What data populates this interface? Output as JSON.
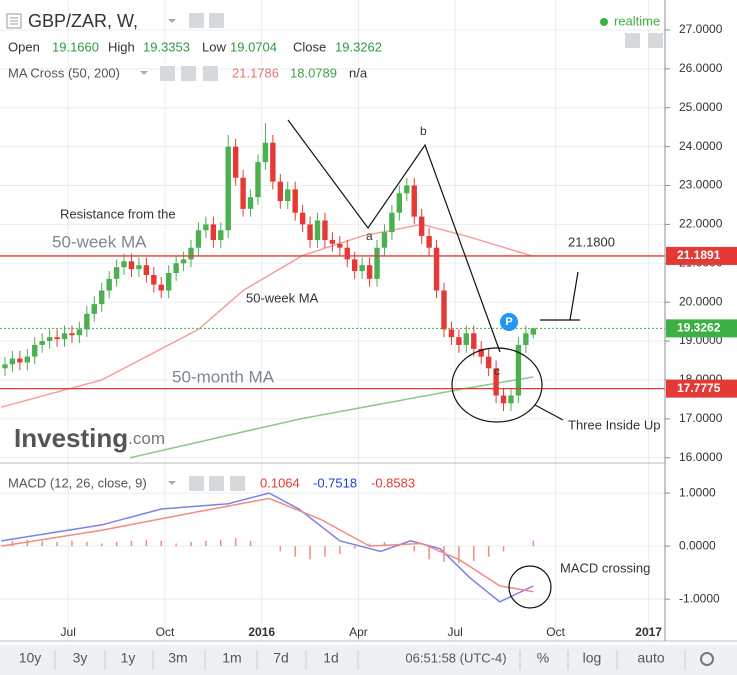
{
  "chart_data": [
    {
      "type": "candlestick",
      "symbol": "GBP/ZAR, W,",
      "realtime": "realtime",
      "ohlc_legend": [
        {
          "name": "Open",
          "value": {
            "value": 19.166,
            "label": "19.1660"
          }
        },
        {
          "name": "High",
          "value": 19.3353
        },
        {
          "name": "Low",
          "value": 19.0704
        },
        {
          "name": "Close",
          "value": 19.3262
        }
      ],
      "ma_cross": {
        "name": "MA Cross (50, 200)",
        "values": [
          21.1786,
          18.0789
        ],
        "extra": "n/a"
      },
      "up_color": "#4caf50",
      "down_color": "#e53935",
      "xlim": [
        -0.67,
        88.7
      ],
      "ylim": [
        15.89,
        27.77
      ],
      "yticks": [
        {
          "value": 16,
          "label": "16.0000"
        },
        {
          "value": 17,
          "label": "17.0000"
        },
        {
          "value": 18,
          "label": "18.0000"
        },
        {
          "value": 19,
          "label": "19.0000"
        },
        {
          "value": 20,
          "label": "20.0000"
        },
        {
          "value": 21,
          "label": "21.0000"
        },
        {
          "value": 22,
          "label": "22.0000"
        },
        {
          "value": 23,
          "label": "23.0000"
        },
        {
          "value": 24,
          "label": "24.0000"
        },
        {
          "value": 25,
          "label": "25.0000"
        },
        {
          "value": 26,
          "label": "26.0000"
        },
        {
          "value": 27,
          "label": "27.0000"
        }
      ],
      "grid": true,
      "ohlc": [
        [
          18.3,
          18.6,
          18.1,
          18.4
        ],
        [
          18.4,
          18.75,
          18.2,
          18.55
        ],
        [
          18.55,
          18.75,
          18.25,
          18.45
        ],
        [
          18.45,
          18.8,
          18.25,
          18.6
        ],
        [
          18.6,
          19.1,
          18.4,
          18.9
        ],
        [
          18.9,
          19.2,
          18.7,
          19.0
        ],
        [
          19.0,
          19.3,
          18.8,
          19.1
        ],
        [
          19.1,
          19.3,
          18.85,
          19.05
        ],
        [
          19.05,
          19.4,
          18.85,
          19.2
        ],
        [
          19.2,
          19.4,
          18.95,
          19.15
        ],
        [
          19.15,
          19.5,
          18.95,
          19.3
        ],
        [
          19.3,
          19.9,
          19.1,
          19.7
        ],
        [
          19.7,
          20.15,
          19.5,
          19.95
        ],
        [
          19.95,
          20.5,
          19.75,
          20.3
        ],
        [
          20.3,
          20.8,
          20.1,
          20.6
        ],
        [
          20.6,
          21.1,
          20.4,
          20.9
        ],
        [
          20.9,
          21.25,
          20.7,
          21.05
        ],
        [
          21.05,
          21.25,
          20.65,
          20.85
        ],
        [
          20.85,
          21.15,
          20.65,
          20.95
        ],
        [
          20.95,
          21.15,
          20.5,
          20.7
        ],
        [
          20.7,
          20.9,
          20.25,
          20.45
        ],
        [
          20.45,
          20.65,
          20.1,
          20.3
        ],
        [
          20.3,
          20.95,
          20.1,
          20.75
        ],
        [
          20.75,
          21.2,
          20.55,
          21.0
        ],
        [
          21.0,
          21.3,
          20.8,
          21.1
        ],
        [
          21.1,
          21.6,
          20.9,
          21.4
        ],
        [
          21.4,
          22.05,
          21.2,
          21.85
        ],
        [
          21.85,
          22.2,
          21.65,
          22.0
        ],
        [
          22.0,
          22.2,
          21.4,
          21.6
        ],
        [
          21.6,
          22.05,
          21.4,
          21.85
        ],
        [
          21.85,
          24.3,
          21.65,
          24.0
        ],
        [
          24.0,
          24.2,
          23.0,
          23.2
        ],
        [
          23.2,
          23.4,
          22.2,
          22.4
        ],
        [
          22.4,
          22.9,
          22.2,
          22.7
        ],
        [
          22.7,
          23.8,
          22.5,
          23.6
        ],
        [
          23.6,
          24.6,
          23.4,
          24.1
        ],
        [
          24.1,
          24.3,
          22.9,
          23.1
        ],
        [
          23.1,
          23.3,
          22.4,
          22.6
        ],
        [
          22.6,
          23.1,
          22.4,
          22.9
        ],
        [
          22.9,
          23.1,
          22.1,
          22.3
        ],
        [
          22.3,
          22.5,
          21.8,
          22.0
        ],
        [
          22.0,
          22.2,
          21.4,
          21.6
        ],
        [
          21.6,
          22.3,
          21.4,
          22.1
        ],
        [
          22.1,
          22.3,
          21.4,
          21.6
        ],
        [
          21.6,
          21.8,
          21.3,
          21.5
        ],
        [
          21.5,
          21.7,
          21.2,
          21.4
        ],
        [
          21.4,
          21.6,
          20.9,
          21.1
        ],
        [
          21.1,
          21.3,
          20.6,
          20.8
        ],
        [
          20.8,
          21.15,
          20.6,
          20.95
        ],
        [
          20.95,
          21.15,
          20.4,
          20.6
        ],
        [
          20.6,
          21.6,
          20.4,
          21.4
        ],
        [
          21.4,
          22.0,
          21.2,
          21.8
        ],
        [
          21.8,
          22.5,
          21.6,
          22.3
        ],
        [
          22.3,
          23.0,
          22.1,
          22.8
        ],
        [
          22.8,
          23.2,
          22.6,
          23.0
        ],
        [
          23.0,
          23.2,
          22.0,
          22.2
        ],
        [
          22.2,
          22.4,
          21.5,
          21.7
        ],
        [
          21.7,
          21.9,
          21.2,
          21.4
        ],
        [
          21.4,
          21.6,
          20.1,
          20.3
        ],
        [
          20.3,
          20.5,
          19.1,
          19.3
        ],
        [
          19.3,
          19.5,
          18.9,
          19.1
        ],
        [
          19.1,
          19.3,
          18.7,
          18.9
        ],
        [
          18.9,
          19.4,
          18.7,
          19.2
        ],
        [
          19.2,
          19.4,
          18.6,
          18.8
        ],
        [
          18.8,
          19.0,
          18.4,
          18.6
        ],
        [
          18.6,
          18.8,
          18.1,
          18.3
        ],
        [
          18.3,
          18.5,
          17.4,
          17.6
        ],
        [
          17.6,
          17.8,
          17.2,
          17.4
        ],
        [
          17.4,
          17.8,
          17.2,
          17.6
        ],
        [
          17.6,
          19.1,
          17.4,
          18.9
        ],
        [
          18.9,
          19.4,
          18.7,
          19.2
        ],
        [
          19.166,
          19.3353,
          19.0704,
          19.3262
        ]
      ],
      "series": [
        {
          "color": "#f4a09a",
          "x": [
            -0.5,
            13,
            26,
            32,
            40,
            48,
            56,
            62,
            71
          ],
          "values": [
            17.3,
            18.0,
            19.3,
            20.3,
            21.2,
            21.7,
            22.0,
            21.7,
            21.1786
          ]
        },
        {
          "color": "#8cc98a",
          "x": [
            16.8,
            39.7,
            61,
            71
          ],
          "values": [
            16.0,
            17.0,
            17.75,
            18.0789
          ]
        }
      ],
      "price_lines": [
        {
          "value": 21.1891,
          "color": "#e53935",
          "style": "solid"
        },
        {
          "value": 17.7775,
          "color": "#e53935",
          "style": "solid"
        },
        {
          "value": 19.3262,
          "color": "#3cb043",
          "style": "dotted"
        }
      ],
      "annotations": {
        "resistance": "Resistance from the",
        "resistance_ma": "50-week MA",
        "ma50w": "50-week MA",
        "ma50m": "50-month MA",
        "level": "21.1800",
        "a": "a",
        "b": "b",
        "c": "c",
        "pattern": "Three Inside Up",
        "marker": "P",
        "logo": "Investing",
        "logo_suffix": ".com"
      }
    },
    {
      "type": "macd",
      "title": "MACD (12, 26, close, 9)",
      "legend": [
        {
          "value": 0.1064,
          "color": "#e53935"
        },
        {
          "value": -0.7518,
          "color": "#1e3fd8"
        },
        {
          "value": -0.8583,
          "color": "#e53935"
        }
      ],
      "xlim": [
        -0.67,
        88.7
      ],
      "ylim": [
        -1.77,
        1.53
      ],
      "yticks": [
        {
          "value": -1,
          "label": "-1.0000"
        },
        {
          "value": 0,
          "label": "0.0000"
        },
        {
          "value": 1,
          "label": "1.0000"
        }
      ],
      "xticks": [
        {
          "value": 8.5,
          "label": "Jul"
        },
        {
          "value": 21.5,
          "label": "Oct"
        },
        {
          "value": 34.5,
          "label": "2016"
        },
        {
          "value": 47.5,
          "label": "Apr"
        },
        {
          "value": 60.5,
          "label": "Jul"
        },
        {
          "value": 74,
          "label": "Oct"
        },
        {
          "value": 86.5,
          "label": "2017"
        }
      ],
      "series": [
        {
          "color": "#7b83eb",
          "x": [
            -0.5,
            13,
            21,
            30,
            35.5,
            39.5,
            45,
            50.5,
            54.5,
            58.5,
            62.5,
            66.5,
            71
          ],
          "values": [
            0.1,
            0.4,
            0.7,
            0.8,
            1.0,
            0.7,
            0.1,
            -0.1,
            0.1,
            -0.05,
            -0.6,
            -1.05,
            -0.7518
          ]
        },
        {
          "color": "#f28b82",
          "x": [
            -0.5,
            13,
            26,
            35.5,
            42.5,
            49,
            56,
            61,
            66.5,
            71
          ],
          "values": [
            0.0,
            0.3,
            0.65,
            0.9,
            0.5,
            0.0,
            0.05,
            -0.25,
            -0.75,
            -0.8583
          ]
        }
      ],
      "histogram": {
        "color": "#f28b82",
        "x": [
          1,
          3,
          5,
          7,
          9,
          11,
          13,
          15,
          17,
          19,
          21,
          23,
          25,
          27,
          29,
          31,
          33,
          35,
          37,
          39,
          41,
          43,
          45,
          47,
          49,
          51,
          53,
          55,
          57,
          59,
          61,
          63,
          65,
          67,
          69,
          71
        ],
        "values": [
          0.1,
          0.12,
          0.1,
          0.08,
          0.1,
          0.08,
          0.05,
          0.08,
          0.1,
          0.12,
          0.1,
          0.05,
          0.08,
          0.1,
          0.12,
          0.15,
          0.1,
          0.0,
          -0.1,
          -0.2,
          -0.25,
          -0.2,
          -0.15,
          -0.05,
          0.05,
          0.08,
          0.02,
          -0.1,
          -0.25,
          -0.3,
          -0.32,
          -0.28,
          -0.2,
          -0.1,
          0.0,
          0.1064
        ]
      },
      "annotations": {
        "crossing": "MACD crossing"
      }
    }
  ],
  "toolbar": {
    "ranges": [
      "10y",
      "3y",
      "1y",
      "3m",
      "1m",
      "7d",
      "1d"
    ],
    "time": "06:51:58 (UTC-4)",
    "options": [
      "%",
      "log",
      "auto"
    ]
  }
}
